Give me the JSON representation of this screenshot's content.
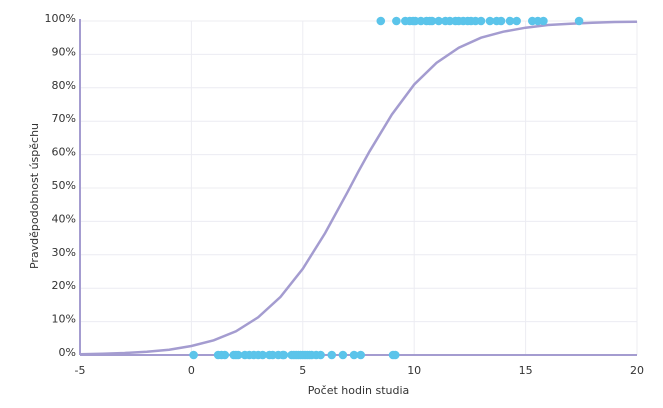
{
  "chart_data": {
    "type": "scatter",
    "title": "",
    "xlabel": "Počet hodin studia",
    "ylabel": "Pravděpodobnost úspěchu",
    "xlim": [
      -5,
      20
    ],
    "ylim": [
      0,
      1
    ],
    "x_ticks": [
      -5,
      0,
      5,
      10,
      15,
      20
    ],
    "x_tick_labels": [
      "-5",
      "0",
      "5",
      "10",
      "15",
      "20"
    ],
    "y_ticks": [
      0,
      0.1,
      0.2,
      0.3,
      0.4,
      0.5,
      0.6,
      0.7,
      0.8,
      0.9,
      1.0
    ],
    "y_tick_labels": [
      "0%",
      "10%",
      "20%",
      "30%",
      "40%",
      "50%",
      "60%",
      "70%",
      "80%",
      "90%",
      "100%"
    ],
    "grid": true,
    "legend": "none",
    "colors": {
      "points": "#5bc4ea",
      "curve": "#a49cd0",
      "axis": "#a49cd0",
      "grid": "#ececf2"
    },
    "series": [
      {
        "kind": "scatter",
        "x": [
          0.1,
          1.2,
          1.35,
          1.5,
          1.9,
          2.0,
          2.1,
          2.4,
          2.6,
          2.8,
          3.0,
          3.2,
          3.5,
          3.65,
          3.9,
          4.1,
          4.15,
          4.5,
          4.6,
          4.7,
          4.8,
          4.9,
          5.0,
          5.1,
          5.2,
          5.3,
          5.4,
          5.6,
          5.8,
          6.3,
          6.8,
          7.3,
          7.6,
          9.05,
          9.15
        ],
        "y": [
          0,
          0,
          0,
          0,
          0,
          0,
          0,
          0,
          0,
          0,
          0,
          0,
          0,
          0,
          0,
          0,
          0,
          0,
          0,
          0,
          0,
          0,
          0,
          0,
          0,
          0,
          0,
          0,
          0,
          0,
          0,
          0,
          0,
          0,
          0
        ]
      },
      {
        "kind": "scatter",
        "x": [
          8.5,
          9.2,
          9.6,
          9.8,
          9.95,
          10.05,
          10.3,
          10.55,
          10.7,
          10.8,
          11.1,
          11.4,
          11.6,
          11.85,
          12.0,
          12.2,
          12.4,
          12.55,
          12.75,
          13.0,
          13.4,
          13.7,
          13.9,
          14.3,
          14.6,
          15.3,
          15.55,
          15.8,
          17.4
        ],
        "y": [
          1,
          1,
          1,
          1,
          1,
          1,
          1,
          1,
          1,
          1,
          1,
          1,
          1,
          1,
          1,
          1,
          1,
          1,
          1,
          1,
          1,
          1,
          1,
          1,
          1,
          1,
          1,
          1,
          1
        ]
      },
      {
        "kind": "line",
        "x": [
          -5,
          -4,
          -3,
          -2,
          -1,
          0,
          1,
          2,
          3,
          4,
          5,
          6,
          7,
          7.5,
          8,
          9,
          10,
          11,
          12,
          13,
          14,
          15,
          16,
          17,
          18,
          19,
          20
        ],
        "y": [
          0.002,
          0.004,
          0.006,
          0.01,
          0.016,
          0.027,
          0.044,
          0.071,
          0.113,
          0.174,
          0.258,
          0.365,
          0.487,
          0.55,
          0.61,
          0.72,
          0.81,
          0.875,
          0.92,
          0.95,
          0.968,
          0.98,
          0.988,
          0.992,
          0.995,
          0.997,
          0.998
        ]
      }
    ]
  }
}
